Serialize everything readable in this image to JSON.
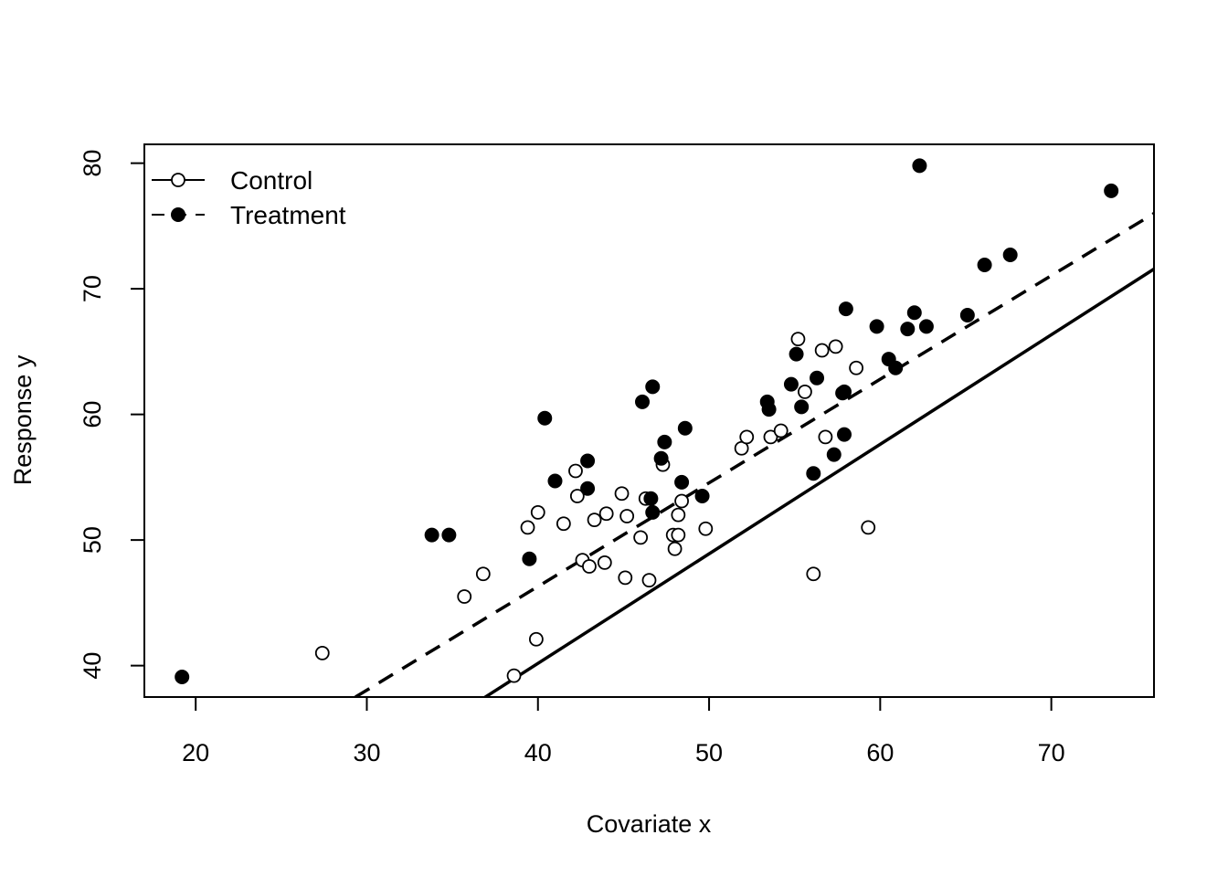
{
  "chart_data": {
    "type": "scatter",
    "title": "",
    "xlabel": "Covariate x",
    "ylabel": "Response y",
    "xlim": [
      17,
      76
    ],
    "ylim": [
      37.5,
      81.5
    ],
    "x_ticks": [
      20,
      30,
      40,
      50,
      60,
      70
    ],
    "y_ticks": [
      40,
      50,
      60,
      70,
      80
    ],
    "x_tick_labels": [
      "20",
      "30",
      "40",
      "50",
      "60",
      "70"
    ],
    "y_tick_labels": [
      "40",
      "50",
      "60",
      "70",
      "80"
    ],
    "grid": false,
    "legend": {
      "position": "top-left"
    },
    "series": [
      {
        "name": "Control",
        "marker": "open-circle",
        "line_style": "solid",
        "color": "#000000",
        "fit_line": {
          "intercept": 5.3,
          "slope": 0.872
        },
        "points": [
          [
            27.4,
            41.0
          ],
          [
            35.7,
            45.5
          ],
          [
            36.8,
            47.3
          ],
          [
            38.6,
            39.2
          ],
          [
            39.4,
            51.0
          ],
          [
            39.9,
            42.1
          ],
          [
            40.0,
            52.2
          ],
          [
            41.5,
            51.3
          ],
          [
            42.2,
            55.5
          ],
          [
            42.3,
            53.5
          ],
          [
            42.6,
            48.4
          ],
          [
            43.0,
            47.9
          ],
          [
            43.3,
            51.6
          ],
          [
            43.9,
            48.2
          ],
          [
            44.0,
            52.1
          ],
          [
            44.9,
            53.7
          ],
          [
            45.1,
            47.0
          ],
          [
            45.2,
            51.9
          ],
          [
            46.0,
            50.2
          ],
          [
            46.3,
            53.3
          ],
          [
            46.5,
            46.8
          ],
          [
            47.3,
            56.0
          ],
          [
            47.9,
            50.4
          ],
          [
            48.0,
            49.3
          ],
          [
            48.2,
            52.0
          ],
          [
            48.2,
            50.4
          ],
          [
            48.4,
            53.1
          ],
          [
            49.8,
            50.9
          ],
          [
            51.9,
            57.3
          ],
          [
            52.2,
            58.2
          ],
          [
            53.6,
            58.2
          ],
          [
            54.2,
            58.7
          ],
          [
            55.2,
            66.0
          ],
          [
            55.6,
            61.8
          ],
          [
            56.1,
            47.3
          ],
          [
            56.6,
            65.1
          ],
          [
            56.8,
            58.2
          ],
          [
            57.4,
            65.4
          ],
          [
            58.6,
            63.7
          ],
          [
            59.3,
            51.0
          ]
        ]
      },
      {
        "name": "Treatment",
        "marker": "filled-circle",
        "line_style": "dashed",
        "color": "#000000",
        "fit_line": {
          "intercept": 13.3,
          "slope": 0.825
        },
        "points": [
          [
            19.2,
            39.1
          ],
          [
            33.8,
            50.4
          ],
          [
            34.8,
            50.4
          ],
          [
            39.5,
            48.5
          ],
          [
            40.4,
            59.7
          ],
          [
            41.0,
            54.7
          ],
          [
            42.9,
            56.3
          ],
          [
            42.9,
            54.1
          ],
          [
            46.1,
            61.0
          ],
          [
            46.6,
            53.3
          ],
          [
            46.7,
            62.2
          ],
          [
            46.7,
            52.2
          ],
          [
            47.2,
            56.5
          ],
          [
            47.4,
            57.8
          ],
          [
            48.4,
            54.6
          ],
          [
            48.6,
            58.9
          ],
          [
            49.6,
            53.5
          ],
          [
            53.4,
            61.0
          ],
          [
            53.5,
            60.4
          ],
          [
            54.8,
            62.4
          ],
          [
            55.1,
            64.8
          ],
          [
            55.4,
            60.6
          ],
          [
            56.1,
            55.3
          ],
          [
            56.3,
            62.9
          ],
          [
            57.3,
            56.8
          ],
          [
            57.8,
            61.7
          ],
          [
            57.9,
            61.8
          ],
          [
            57.9,
            58.4
          ],
          [
            58.0,
            68.4
          ],
          [
            59.8,
            67.0
          ],
          [
            60.5,
            64.4
          ],
          [
            60.9,
            63.7
          ],
          [
            61.6,
            66.8
          ],
          [
            62.0,
            68.1
          ],
          [
            62.3,
            79.8
          ],
          [
            62.7,
            67.0
          ],
          [
            65.1,
            67.9
          ],
          [
            66.1,
            71.9
          ],
          [
            67.6,
            72.7
          ],
          [
            73.5,
            77.8
          ]
        ]
      }
    ]
  }
}
